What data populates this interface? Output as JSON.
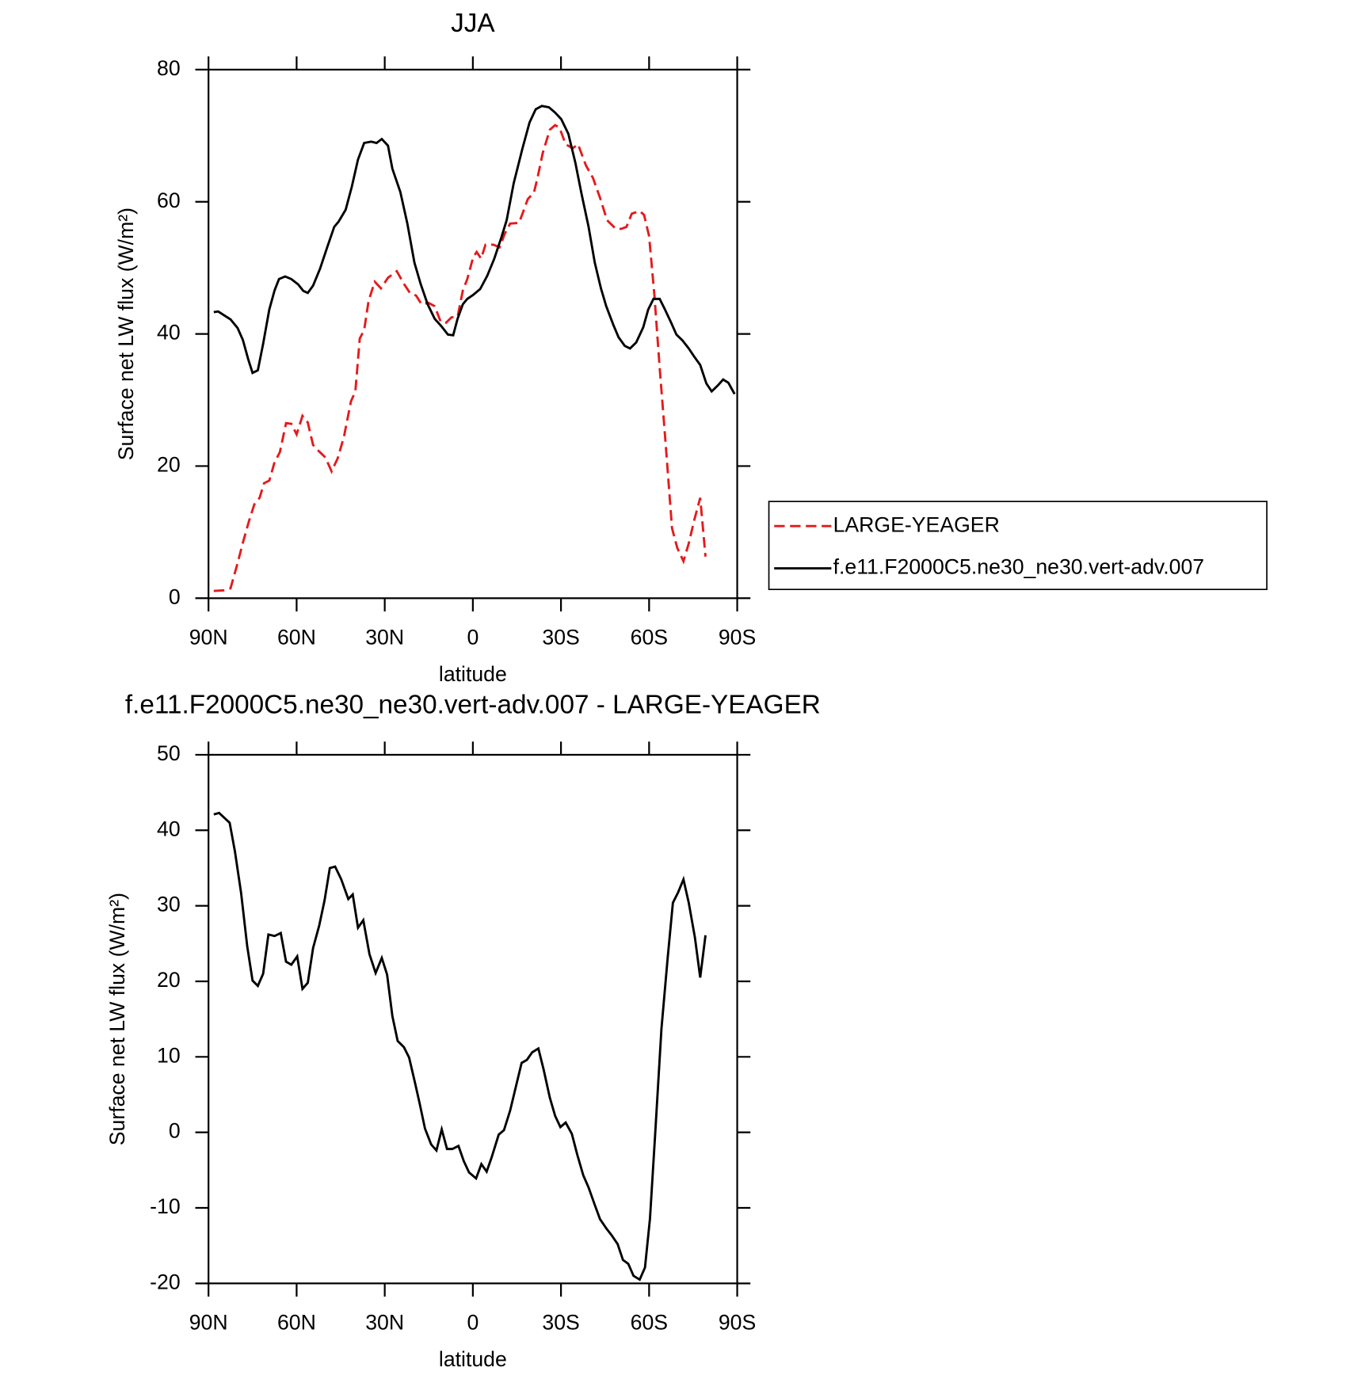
{
  "chart_data": [
    {
      "type": "line",
      "title": "JJA",
      "xlabel": "latitude",
      "ylabel": "Surface net LW flux (W/m²)",
      "xlim": [
        90,
        -90
      ],
      "xticks": [
        {
          "value": 90,
          "label": "90N"
        },
        {
          "value": 60,
          "label": "60N"
        },
        {
          "value": 30,
          "label": "30N"
        },
        0,
        {
          "value": -30,
          "label": "30S"
        },
        {
          "value": -60,
          "label": "60S"
        },
        {
          "value": -90,
          "label": "90S"
        }
      ],
      "ylim": [
        0,
        80
      ],
      "yticks": [
        0,
        20,
        40,
        60,
        80
      ],
      "legend": "outside right",
      "series": [
        {
          "name": "LARGE-YEAGER",
          "color": "#e41a1c",
          "dashed": true,
          "x": [
            88.2,
            84.6,
            82.5,
            80.1,
            78.3,
            76.2,
            74.4,
            72.6,
            71.1,
            69.3,
            67.5,
            65.7,
            63.6,
            61.8,
            60,
            58,
            56.2,
            54.4,
            52.3,
            50.2,
            48.1,
            46,
            43.9,
            41.5,
            40,
            38.5,
            37,
            35.5,
            33.4,
            31.3,
            28.9,
            25.9,
            23.5,
            21.4,
            19.3,
            17.5,
            15.1,
            13,
            10.9,
            9.1,
            7.3,
            5.2,
            3.4,
            1.9,
            -0.1,
            -1.3,
            -2.8,
            -4.3,
            -7,
            -9.1,
            -10.9,
            -12.7,
            -15.7,
            -16.9,
            -18.7,
            -20.8,
            -22,
            -23.8,
            -26.2,
            -28,
            -29.5,
            -31.6,
            -34,
            -35.8,
            -38.5,
            -40.9,
            -43.3,
            -45.7,
            -48.7,
            -50.5,
            -52.3,
            -54.1,
            -56.8,
            -58.3,
            -60,
            -61.8,
            -63.6,
            -65.7,
            -67.8,
            -69.6,
            -71.7,
            -73.5,
            -75.3,
            -77.4,
            -79.2
          ],
          "values": [
            1.1,
            1.2,
            1.5,
            5.3,
            8.4,
            11.7,
            14.2,
            15.2,
            17.4,
            17.8,
            20.6,
            22.1,
            26.5,
            26.4,
            24.8,
            27.6,
            26.6,
            23.2,
            22.2,
            21.3,
            19.2,
            21.2,
            24.4,
            29.8,
            31.3,
            39.3,
            40.6,
            45,
            47.9,
            46.9,
            48.5,
            49.5,
            47.6,
            46.2,
            45.8,
            44.5,
            44.7,
            44.2,
            41.8,
            41.7,
            42.5,
            42.6,
            46.6,
            48.3,
            51.6,
            52.4,
            51.4,
            53.5,
            53.5,
            53.1,
            55.2,
            56.7,
            56.8,
            58.2,
            60.4,
            61.4,
            63.6,
            67.4,
            70.9,
            71.6,
            71.2,
            68.7,
            68.1,
            68.7,
            65.5,
            63.6,
            60.6,
            57.2,
            55.9,
            55.9,
            56.2,
            58.2,
            58.6,
            58,
            54.8,
            45.9,
            34.9,
            23,
            10.6,
            7.6,
            5.6,
            8.3,
            11.7,
            15.2,
            6.3
          ]
        },
        {
          "name": "f.e11.F2000C5.ne30_ne30.vert-adv.007",
          "color": "#000000",
          "dashed": false,
          "x": [
            88.2,
            86.7,
            82.5,
            80.1,
            78.3,
            76.5,
            75,
            73.2,
            71.4,
            69.3,
            67.5,
            66,
            63.9,
            61.8,
            59.5,
            57.7,
            56.2,
            54.4,
            52,
            49.6,
            47.2,
            45.7,
            43.3,
            41.2,
            39.1,
            37,
            34.6,
            32.8,
            31,
            28.9,
            27.4,
            24.7,
            22.3,
            19.9,
            17.8,
            15.4,
            13,
            10.6,
            8.5,
            6.7,
            5.2,
            3.4,
            1.9,
            -0.1,
            -2.5,
            -4.9,
            -7.3,
            -9.7,
            -11.5,
            -13.9,
            -16.9,
            -19.3,
            -21.4,
            -23.5,
            -25.9,
            -28,
            -30.1,
            -32.5,
            -34.9,
            -37,
            -39.4,
            -41.5,
            -43.6,
            -45.4,
            -47.8,
            -49.6,
            -51.7,
            -53.5,
            -55.6,
            -58,
            -59.7,
            -61.5,
            -63.6,
            -65.4,
            -67.5,
            -69.3,
            -71.4,
            -73.5,
            -75.3,
            -77.4,
            -79.5,
            -81.3,
            -83.4,
            -85.2,
            -87,
            -89.1
          ],
          "values": [
            43.3,
            43.4,
            42.2,
            40.9,
            39.1,
            36.2,
            34.1,
            34.5,
            38.5,
            43.7,
            46.6,
            48.3,
            48.7,
            48.3,
            47.5,
            46.5,
            46.2,
            47.3,
            49.9,
            53.1,
            56.2,
            57,
            58.8,
            62.3,
            66.4,
            68.9,
            69.1,
            68.9,
            69.5,
            68.5,
            65,
            61.5,
            56.7,
            50.8,
            47.6,
            44.5,
            42.3,
            41.1,
            39.9,
            39.8,
            42.3,
            44.5,
            45.3,
            45.9,
            46.8,
            48.8,
            51.4,
            54.6,
            57.2,
            62.8,
            68.1,
            72,
            74,
            74.5,
            74.3,
            73.5,
            72.5,
            70.3,
            65.9,
            61.2,
            56.2,
            50.8,
            46.9,
            44.2,
            41.4,
            39.5,
            38.2,
            37.8,
            38.7,
            41,
            43.7,
            45.3,
            45.3,
            43.7,
            41.7,
            39.9,
            39,
            37.8,
            36.6,
            35.3,
            32.5,
            31.3,
            32.2,
            33.1,
            32.6,
            30.9
          ]
        }
      ]
    },
    {
      "type": "line",
      "title": "f.e11.F2000C5.ne30_ne30.vert-adv.007 - LARGE-YEAGER",
      "xlabel": "latitude",
      "ylabel": "Surface net LW flux (W/m²)",
      "xlim": [
        90,
        -90
      ],
      "xticks": [
        {
          "value": 90,
          "label": "90N"
        },
        {
          "value": 60,
          "label": "60N"
        },
        {
          "value": 30,
          "label": "30N"
        },
        0,
        {
          "value": -30,
          "label": "30S"
        },
        {
          "value": -60,
          "label": "60S"
        },
        {
          "value": -90,
          "label": "90S"
        }
      ],
      "ylim": [
        -20,
        50
      ],
      "yticks": [
        -20,
        -10,
        0,
        10,
        20,
        30,
        40,
        50
      ],
      "series": [
        {
          "color": "#000000",
          "dashed": false,
          "x": [
            88.2,
            86.4,
            82.8,
            81,
            78.9,
            76.8,
            75,
            73.2,
            71.4,
            69.6,
            67.5,
            65.4,
            63.6,
            61.8,
            59.8,
            58,
            56.2,
            54.4,
            52.3,
            50.5,
            48.7,
            46.9,
            44.8,
            42.4,
            40.9,
            39.1,
            37.3,
            35.2,
            33.1,
            31,
            29.2,
            27.4,
            25.6,
            23.5,
            21.7,
            19.6,
            18.1,
            16.3,
            14.2,
            12.4,
            10.6,
            8.8,
            7,
            4.9,
            3.1,
            1.3,
            -1.1,
            -2.9,
            -4.7,
            -6.4,
            -8.8,
            -10.6,
            -12.7,
            -14.8,
            -16.6,
            -18.4,
            -20.2,
            -22.3,
            -24.1,
            -26.2,
            -28,
            -29.8,
            -31.6,
            -33.7,
            -35.5,
            -37.6,
            -39.4,
            -41.5,
            -43.3,
            -45.4,
            -47.2,
            -49.3,
            -51.1,
            -52.9,
            -54.7,
            -56.8,
            -58.6,
            -60.3,
            -62.1,
            -64.2,
            -66.3,
            -68.1,
            -69.9,
            -71.7,
            -73.5,
            -75.6,
            -77.4,
            -79.2
          ],
          "values": [
            42.1,
            42.3,
            41,
            37.2,
            31.7,
            24.6,
            20.1,
            19.4,
            21,
            26.2,
            26,
            26.4,
            22.6,
            22.2,
            23.3,
            19,
            19.8,
            24.4,
            27.4,
            30.7,
            35,
            35.2,
            33.5,
            30.9,
            31.5,
            27.1,
            28.1,
            23.6,
            21.1,
            23.1,
            20.9,
            15.4,
            12.1,
            11.3,
            9.9,
            6.4,
            3.8,
            0.5,
            -1.6,
            -2.4,
            0.4,
            -2.2,
            -2.2,
            -1.8,
            -3.8,
            -5.3,
            -6.1,
            -4.2,
            -5.2,
            -3.3,
            -0.3,
            0.3,
            2.9,
            6.3,
            9.2,
            9.6,
            10.6,
            11.1,
            8.3,
            4.6,
            2.2,
            0.7,
            1.3,
            -0.2,
            -2.9,
            -5.7,
            -7.3,
            -9.6,
            -11.5,
            -12.7,
            -13.6,
            -14.8,
            -16.9,
            -17.4,
            -19,
            -19.5,
            -17.9,
            -11.4,
            0,
            13.7,
            23,
            30.4,
            31.8,
            33.5,
            30.4,
            25.8,
            20.5,
            26.1
          ]
        }
      ]
    }
  ]
}
